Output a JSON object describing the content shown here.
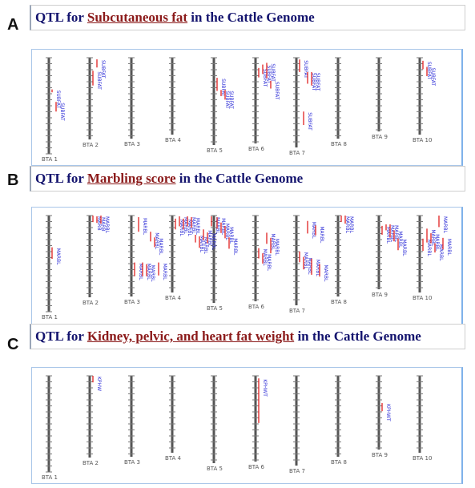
{
  "panels": [
    {
      "letter": "A",
      "title_prefix": "QTL for ",
      "trait": "Subcutaneous fat",
      "title_suffix": " in the Cattle Genome",
      "chromosomes": [
        "BTA 1",
        "BTA 2",
        "BTA 3",
        "BTA 4",
        "BTA 5",
        "BTA 6",
        "BTA 7",
        "BTA 8",
        "BTA 9",
        "BTA 10"
      ],
      "qtls": [
        {
          "chr": 1,
          "label": "SUBFAT",
          "start": 0.33,
          "end": 0.36
        },
        {
          "chr": 1,
          "label": "SUBFAT",
          "start": 0.46,
          "end": 0.56
        },
        {
          "chr": 2,
          "label": "SUBFAT",
          "start": 0.16,
          "end": 0.34
        },
        {
          "chr": 2,
          "label": "SUBFAT",
          "start": 0.02,
          "end": 0.12
        },
        {
          "chr": 5,
          "label": "SUBFAT",
          "start": 0.23,
          "end": 0.38
        },
        {
          "chr": 5,
          "label": "SUBFAT",
          "start": 0.37,
          "end": 0.44
        },
        {
          "chr": 5,
          "label": "SUBFAT",
          "start": 0.37,
          "end": 0.48
        },
        {
          "chr": 6,
          "label": "SUBFAT",
          "start": 0.12,
          "end": 0.23
        },
        {
          "chr": 6,
          "label": "SUBFAT",
          "start": 0.08,
          "end": 0.19
        },
        {
          "chr": 6,
          "label": "SUBFAT",
          "start": 0.06,
          "end": 0.24
        },
        {
          "chr": 6,
          "label": "SUBFAT",
          "start": 0.27,
          "end": 0.36
        },
        {
          "chr": 7,
          "label": "SUBFAT",
          "start": 0.02,
          "end": 0.16
        },
        {
          "chr": 7,
          "label": "SUBFAT",
          "start": 0.6,
          "end": 0.75
        },
        {
          "chr": 7,
          "label": "SUBFAT",
          "start": 0.16,
          "end": 0.29
        },
        {
          "chr": 7,
          "label": "SUBFAT",
          "start": 0.16,
          "end": 0.31
        },
        {
          "chr": 10,
          "label": "SUBFAT",
          "start": 0.04,
          "end": 0.15
        },
        {
          "chr": 10,
          "label": "SUBFAT",
          "start": 0.12,
          "end": 0.24
        }
      ]
    },
    {
      "letter": "B",
      "title_prefix": "QTL for ",
      "trait": "Marbling score",
      "title_suffix": " in the Cattle Genome",
      "chromosomes": [
        "BTA 1",
        "BTA 2",
        "BTA 3",
        "BTA 4",
        "BTA 5",
        "BTA 6",
        "BTA 7",
        "BTA 8",
        "BTA 9",
        "BTA 10"
      ],
      "qtls": [
        {
          "chr": 1,
          "label": "MARBL",
          "start": 0.33,
          "end": 0.45
        },
        {
          "chr": 2,
          "label": "MARB",
          "start": 0.0,
          "end": 0.08
        },
        {
          "chr": 2,
          "label": "MARB",
          "start": 0.01,
          "end": 0.09
        },
        {
          "chr": 2,
          "label": "MARBL",
          "start": 0.0,
          "end": 0.1
        },
        {
          "chr": 3,
          "label": "MARBL",
          "start": 0.58,
          "end": 0.75
        },
        {
          "chr": 3,
          "label": "MARBL",
          "start": 0.02,
          "end": 0.2
        },
        {
          "chr": 3,
          "label": "MARBL",
          "start": 0.58,
          "end": 0.75
        },
        {
          "chr": 3,
          "label": "MARBL",
          "start": 0.6,
          "end": 0.75
        },
        {
          "chr": 3,
          "label": "MARBL",
          "start": 0.2,
          "end": 0.32
        },
        {
          "chr": 3,
          "label": "MARBL",
          "start": 0.27,
          "end": 0.39
        },
        {
          "chr": 3,
          "label": "MARBL",
          "start": 0.58,
          "end": 0.74
        },
        {
          "chr": 4,
          "label": "MARBL",
          "start": 0.04,
          "end": 0.18
        },
        {
          "chr": 4,
          "label": "MARBL",
          "start": 0.01,
          "end": 0.14
        },
        {
          "chr": 4,
          "label": "MARBL",
          "start": 0.04,
          "end": 0.18
        },
        {
          "chr": 4,
          "label": "MARBL",
          "start": 0.01,
          "end": 0.14
        },
        {
          "chr": 4,
          "label": "MARBL",
          "start": 0.02,
          "end": 0.16
        },
        {
          "chr": 4,
          "label": "MARBL",
          "start": 0.25,
          "end": 0.35
        },
        {
          "chr": 4,
          "label": "MARBL",
          "start": 0.27,
          "end": 0.42
        },
        {
          "chr": 4,
          "label": "MARBL",
          "start": 0.18,
          "end": 0.32
        },
        {
          "chr": 4,
          "label": "MARBL",
          "start": 0.22,
          "end": 0.36
        },
        {
          "chr": 4,
          "label": "MARBL",
          "start": 0.01,
          "end": 0.14
        },
        {
          "chr": 5,
          "label": "MARBL",
          "start": 0.02,
          "end": 0.15
        },
        {
          "chr": 5,
          "label": "MARBL",
          "start": 0.08,
          "end": 0.2
        },
        {
          "chr": 5,
          "label": "MARBL",
          "start": 0.12,
          "end": 0.26
        },
        {
          "chr": 5,
          "label": "MARBL",
          "start": 0.25,
          "end": 0.38
        },
        {
          "chr": 6,
          "label": "MARBL",
          "start": 0.38,
          "end": 0.5
        },
        {
          "chr": 6,
          "label": "MARBL",
          "start": 0.44,
          "end": 0.56
        },
        {
          "chr": 6,
          "label": "MARBL",
          "start": 0.2,
          "end": 0.33
        },
        {
          "chr": 6,
          "label": "MARBL",
          "start": 0.26,
          "end": 0.44
        },
        {
          "chr": 7,
          "label": "MARBL",
          "start": 0.4,
          "end": 0.52
        },
        {
          "chr": 7,
          "label": "MARBL",
          "start": 0.46,
          "end": 0.6
        },
        {
          "chr": 7,
          "label": "MARBL",
          "start": 0.06,
          "end": 0.2
        },
        {
          "chr": 7,
          "label": "MARBL",
          "start": 0.48,
          "end": 0.66
        },
        {
          "chr": 7,
          "label": "MARBL",
          "start": 0.11,
          "end": 0.22
        },
        {
          "chr": 7,
          "label": "MARBL",
          "start": 0.54,
          "end": 0.68
        },
        {
          "chr": 8,
          "label": "MARBL",
          "start": 0.0,
          "end": 0.08
        },
        {
          "chr": 8,
          "label": "MARBL",
          "start": 0.0,
          "end": 0.1
        },
        {
          "chr": 9,
          "label": "MARBL",
          "start": 0.14,
          "end": 0.26
        },
        {
          "chr": 9,
          "label": "MARBL",
          "start": 0.12,
          "end": 0.2
        },
        {
          "chr": 9,
          "label": "MARBL",
          "start": 0.12,
          "end": 0.3
        },
        {
          "chr": 9,
          "label": "MARBL",
          "start": 0.2,
          "end": 0.35
        },
        {
          "chr": 9,
          "label": "MARBL",
          "start": 0.31,
          "end": 0.47
        },
        {
          "chr": 10,
          "label": "MARBL",
          "start": 0.3,
          "end": 0.46
        },
        {
          "chr": 10,
          "label": "MARBL",
          "start": 0.17,
          "end": 0.35
        },
        {
          "chr": 10,
          "label": "MARBL",
          "start": 0.23,
          "end": 0.36
        },
        {
          "chr": 10,
          "label": "MARBL",
          "start": 0.36,
          "end": 0.48
        },
        {
          "chr": 10,
          "label": "MARBL",
          "start": 0.0,
          "end": 0.15
        },
        {
          "chr": 10,
          "label": "MARBL",
          "start": 0.29,
          "end": 0.44
        }
      ]
    },
    {
      "letter": "C",
      "title_prefix": "QTL for ",
      "trait": "Kidney, pelvic, and heart fat weight",
      "title_suffix": " in the Cattle Genome",
      "chromosomes": [
        "BTA 1",
        "BTA 2",
        "BTA 3",
        "BTA 4",
        "BTA 5",
        "BTA 6",
        "BTA 7",
        "BTA 8",
        "BTA 9",
        "BTA 10"
      ],
      "qtls": [
        {
          "chr": 2,
          "label": "KPHW",
          "start": 0.0,
          "end": 0.08
        },
        {
          "chr": 6,
          "label": "KPHWT",
          "start": 0.03,
          "end": 0.55
        },
        {
          "chr": 9,
          "label": "KPHWT",
          "start": 0.37,
          "end": 0.48
        }
      ]
    }
  ],
  "colors": {
    "title_text": "#14146e",
    "trait_text": "#8b1a1a",
    "chromosome": "#555555",
    "qtl_bar": "#e02020",
    "qtl_label": "#2b2bd6"
  }
}
